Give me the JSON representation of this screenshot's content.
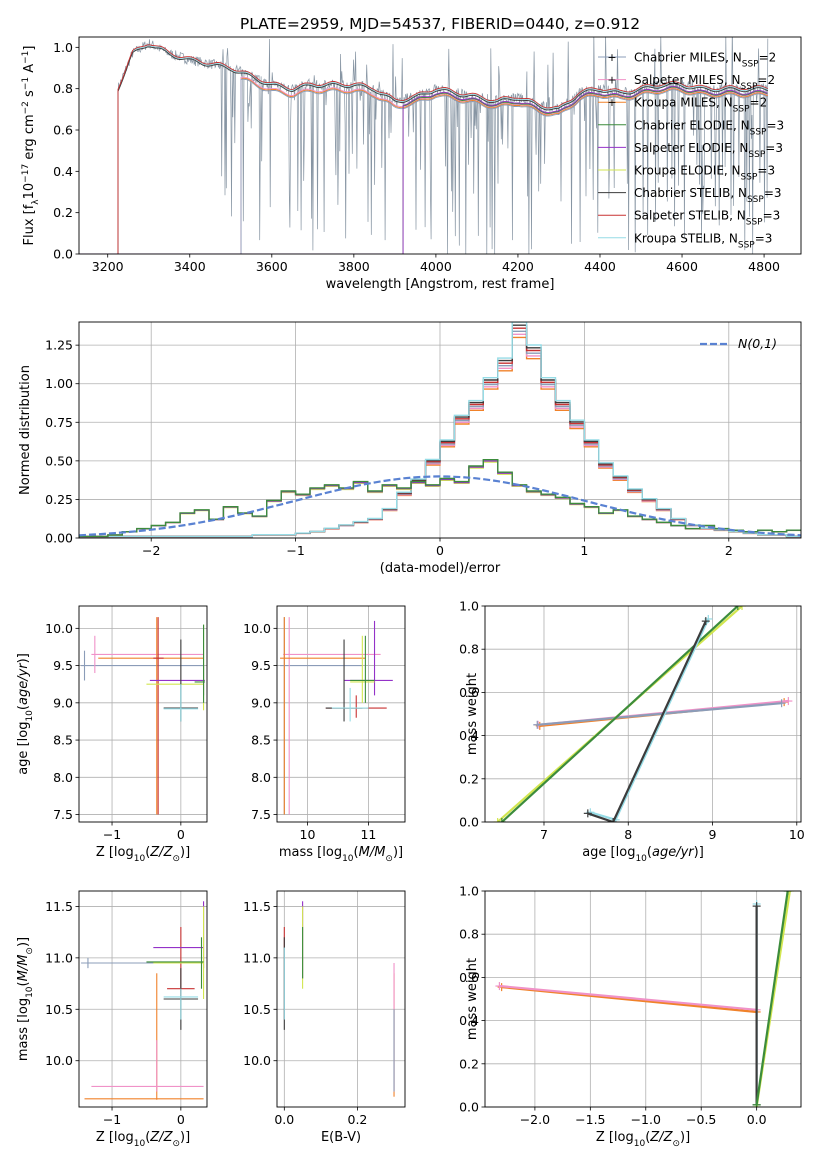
{
  "figure": {
    "title": "PLATE=2959, MJD=54537, FIBERID=0440, z=0.912"
  },
  "colors": {
    "cm": "#8b9cb8",
    "sm": "#f092c8",
    "km": "#f0822a",
    "ce": "#3c8c3c",
    "se": "#9432c8",
    "ke": "#d2e650",
    "cs": "#3c3c3c",
    "ss": "#c83232",
    "ks": "#96dce6",
    "gauss": "#5a82d2"
  },
  "legend_spec": {
    "entries": [
      {
        "key": "cm",
        "pre": "Chabrier MILES, N",
        "sub": "SSP",
        "post": "=2"
      },
      {
        "key": "sm",
        "pre": "Salpeter MILES, N",
        "sub": "SSP",
        "post": "=2"
      },
      {
        "key": "km",
        "pre": "Kroupa MILES, N",
        "sub": "SSP",
        "post": "=2"
      },
      {
        "key": "ce",
        "pre": "Chabrier ELODIE, N",
        "sub": "SSP",
        "post": "=3"
      },
      {
        "key": "se",
        "pre": "Salpeter ELODIE, N",
        "sub": "SSP",
        "post": "=3"
      },
      {
        "key": "ke",
        "pre": "Kroupa ELODIE, N",
        "sub": "SSP",
        "post": "=3"
      },
      {
        "key": "cs",
        "pre": "Chabrier STELIB, N",
        "sub": "SSP",
        "post": "=3"
      },
      {
        "key": "ss",
        "pre": "Salpeter STELIB, N",
        "sub": "SSP",
        "post": "=3"
      },
      {
        "key": "ks",
        "pre": "Kroupa STELIB, N",
        "sub": "SSP",
        "post": "=3"
      }
    ]
  },
  "chart_data": [
    {
      "id": "spectrum",
      "type": "line",
      "xlabel": "wavelength [Angstrom, rest frame]",
      "ylabel": "Flux [f_λ 10^-17 erg cm^-2 s^-1 A^-1]",
      "xlim": [
        3130,
        4890
      ],
      "ylim": [
        0,
        1.05
      ],
      "xticks": [
        3200,
        3400,
        3600,
        3800,
        4000,
        4200,
        4400,
        4600,
        4800
      ],
      "yticks": [
        0.0,
        0.2,
        0.4,
        0.6,
        0.8,
        1.0
      ],
      "grid": false,
      "legend": "right",
      "data_start": 3225,
      "data_end": 4810,
      "model_starts": {
        "MILES": 3525,
        "ELODIE": 3920,
        "STELIB": 3225
      },
      "continuum": [
        [
          3225,
          0.8
        ],
        [
          3260,
          0.97
        ],
        [
          3300,
          1.02
        ],
        [
          3350,
          0.97
        ],
        [
          3400,
          0.94
        ],
        [
          3450,
          0.92
        ],
        [
          3500,
          0.9
        ],
        [
          3550,
          0.86
        ],
        [
          3600,
          0.82
        ],
        [
          3650,
          0.8
        ],
        [
          3700,
          0.82
        ],
        [
          3750,
          0.82
        ],
        [
          3800,
          0.82
        ],
        [
          3850,
          0.8
        ],
        [
          3900,
          0.74
        ],
        [
          3950,
          0.76
        ],
        [
          4000,
          0.8
        ],
        [
          4050,
          0.78
        ],
        [
          4100,
          0.76
        ],
        [
          4150,
          0.74
        ],
        [
          4200,
          0.76
        ],
        [
          4250,
          0.72
        ],
        [
          4300,
          0.7
        ],
        [
          4350,
          0.78
        ],
        [
          4400,
          0.8
        ],
        [
          4450,
          0.78
        ],
        [
          4500,
          0.8
        ],
        [
          4550,
          0.82
        ],
        [
          4600,
          0.82
        ],
        [
          4650,
          0.8
        ],
        [
          4700,
          0.8
        ],
        [
          4750,
          0.8
        ],
        [
          4810,
          0.8
        ]
      ]
    },
    {
      "id": "residuals",
      "type": "histogram",
      "xlabel": "(data-model)/error",
      "ylabel": "Normed distribution",
      "xlim": [
        -2.5,
        2.5
      ],
      "ylim": [
        0,
        1.4
      ],
      "xticks": [
        -2,
        -1,
        0,
        1,
        2
      ],
      "yticks": [
        0.0,
        0.25,
        0.5,
        0.75,
        1.0,
        1.25
      ],
      "grid": true,
      "legend": "top-right",
      "gauss_label": "N(0,1)",
      "bin_edges_start": -2.5,
      "bin_width": 0.1,
      "series": [
        {
          "name": "MILES / STELIB",
          "values": [
            0.01,
            0.01,
            0.01,
            0.01,
            0.01,
            0.01,
            0.01,
            0.01,
            0.01,
            0.01,
            0.01,
            0.01,
            0.02,
            0.02,
            0.02,
            0.03,
            0.04,
            0.06,
            0.08,
            0.1,
            0.12,
            0.18,
            0.28,
            0.36,
            0.48,
            0.6,
            0.75,
            0.84,
            0.98,
            1.1,
            1.32,
            1.18,
            0.98,
            0.84,
            0.72,
            0.6,
            0.46,
            0.38,
            0.3,
            0.24,
            0.18,
            0.12,
            0.08,
            0.06,
            0.05,
            0.04,
            0.03,
            0.02,
            0.02,
            0.01
          ]
        },
        {
          "name": "ELODIE",
          "values": [
            0.01,
            0.01,
            0.02,
            0.04,
            0.06,
            0.08,
            0.1,
            0.16,
            0.18,
            0.12,
            0.2,
            0.16,
            0.14,
            0.24,
            0.3,
            0.28,
            0.32,
            0.34,
            0.32,
            0.36,
            0.3,
            0.34,
            0.32,
            0.36,
            0.34,
            0.38,
            0.36,
            0.46,
            0.5,
            0.42,
            0.34,
            0.3,
            0.28,
            0.26,
            0.22,
            0.2,
            0.16,
            0.18,
            0.14,
            0.12,
            0.1,
            0.08,
            0.06,
            0.08,
            0.06,
            0.05,
            0.04,
            0.05,
            0.04,
            0.05
          ]
        }
      ]
    },
    {
      "id": "age_vs_Z",
      "type": "errorbar",
      "xlabel": "Z [log10(Z/Z⊙)]",
      "ylabel": "age [log10(age/yr)]",
      "xlim": [
        -1.48,
        0.38
      ],
      "ylim": [
        7.4,
        10.3
      ],
      "xticks": [
        -1,
        0
      ],
      "yticks": [
        7.5,
        8.0,
        8.5,
        9.0,
        9.5,
        10.0
      ],
      "grid": true
    },
    {
      "id": "age_vs_mass",
      "type": "errorbar",
      "xlabel": "mass [log10(M/M⊙)]",
      "ylabel": "",
      "xlim": [
        9.5,
        11.6
      ],
      "ylim": [
        7.4,
        10.3
      ],
      "xticks": [
        10,
        11
      ],
      "yticks": [
        7.5,
        8.0,
        8.5,
        9.0,
        9.5,
        10.0
      ],
      "grid": true
    },
    {
      "id": "weight_vs_age",
      "type": "line",
      "xlabel": "age [log10(age/yr)]",
      "ylabel": "mass weight",
      "xlim": [
        6.3,
        10.05
      ],
      "ylim": [
        0,
        1.0
      ],
      "xticks": [
        7,
        8,
        9,
        10
      ],
      "yticks": [
        0.0,
        0.2,
        0.4,
        0.6,
        0.8,
        1.0
      ],
      "grid": true,
      "series": [
        {
          "key": "km",
          "points": [
            [
              6.95,
              0.445
            ],
            [
              9.85,
              0.555
            ]
          ]
        },
        {
          "key": "sm",
          "points": [
            [
              6.93,
              0.45
            ],
            [
              9.9,
              0.56
            ]
          ]
        },
        {
          "key": "cm",
          "points": [
            [
              6.92,
              0.45
            ],
            [
              9.82,
              0.55
            ]
          ]
        },
        {
          "key": "ke",
          "points": [
            [
              6.45,
              0.0
            ],
            [
              9.35,
              1.0
            ]
          ]
        },
        {
          "key": "ce",
          "points": [
            [
              6.5,
              0.0
            ],
            [
              9.3,
              1.0
            ]
          ]
        },
        {
          "key": "ks",
          "points": [
            [
              7.55,
              0.045
            ],
            [
              7.85,
              0.01
            ],
            [
              8.95,
              0.94
            ]
          ]
        },
        {
          "key": "cs",
          "points": [
            [
              7.52,
              0.04
            ],
            [
              7.82,
              0.0
            ],
            [
              8.92,
              0.93
            ]
          ]
        }
      ]
    },
    {
      "id": "mass_vs_Z",
      "type": "errorbar",
      "xlabel": "Z [log10(Z/Z⊙)]",
      "ylabel": "mass [log10(M/M⊙)]",
      "xlim": [
        -1.48,
        0.38
      ],
      "ylim": [
        9.55,
        11.65
      ],
      "xticks": [
        -1,
        0
      ],
      "yticks": [
        10.0,
        10.5,
        11.0,
        11.5
      ],
      "grid": true
    },
    {
      "id": "mass_vs_ebv",
      "type": "errorbar",
      "xlabel": "E(B-V)",
      "ylabel": "",
      "xlim": [
        -0.02,
        0.33
      ],
      "ylim": [
        9.55,
        11.65
      ],
      "xticks": [
        0.0,
        0.2
      ],
      "yticks": [
        10.0,
        10.5,
        11.0,
        11.5
      ],
      "grid": true
    },
    {
      "id": "weight_vs_Z",
      "type": "line",
      "xlabel": "Z [log10(Z/Z⊙)]",
      "ylabel": "mass weight",
      "xlim": [
        -2.45,
        0.4
      ],
      "ylim": [
        0,
        1.0
      ],
      "xticks": [
        -2.0,
        -1.5,
        -1.0,
        -0.5,
        0.0
      ],
      "yticks": [
        0.0,
        0.2,
        0.4,
        0.6,
        0.8,
        1.0
      ],
      "grid": true,
      "series": [
        {
          "key": "km",
          "points": [
            [
              -2.3,
              0.555
            ],
            [
              0.0,
              0.44
            ]
          ]
        },
        {
          "key": "sm",
          "points": [
            [
              -2.32,
              0.56
            ],
            [
              0.0,
              0.45
            ]
          ]
        },
        {
          "key": "ks",
          "points": [
            [
              0.0,
              0.0
            ],
            [
              0.0,
              0.94
            ]
          ]
        },
        {
          "key": "cs",
          "points": [
            [
              0.0,
              0.01
            ],
            [
              0.0,
              0.93
            ]
          ]
        },
        {
          "key": "ke",
          "points": [
            [
              0.0,
              0.0
            ],
            [
              0.3,
              1.0
            ]
          ]
        },
        {
          "key": "ce",
          "points": [
            [
              0.0,
              0.01
            ],
            [
              0.28,
              1.0
            ]
          ]
        }
      ]
    }
  ]
}
